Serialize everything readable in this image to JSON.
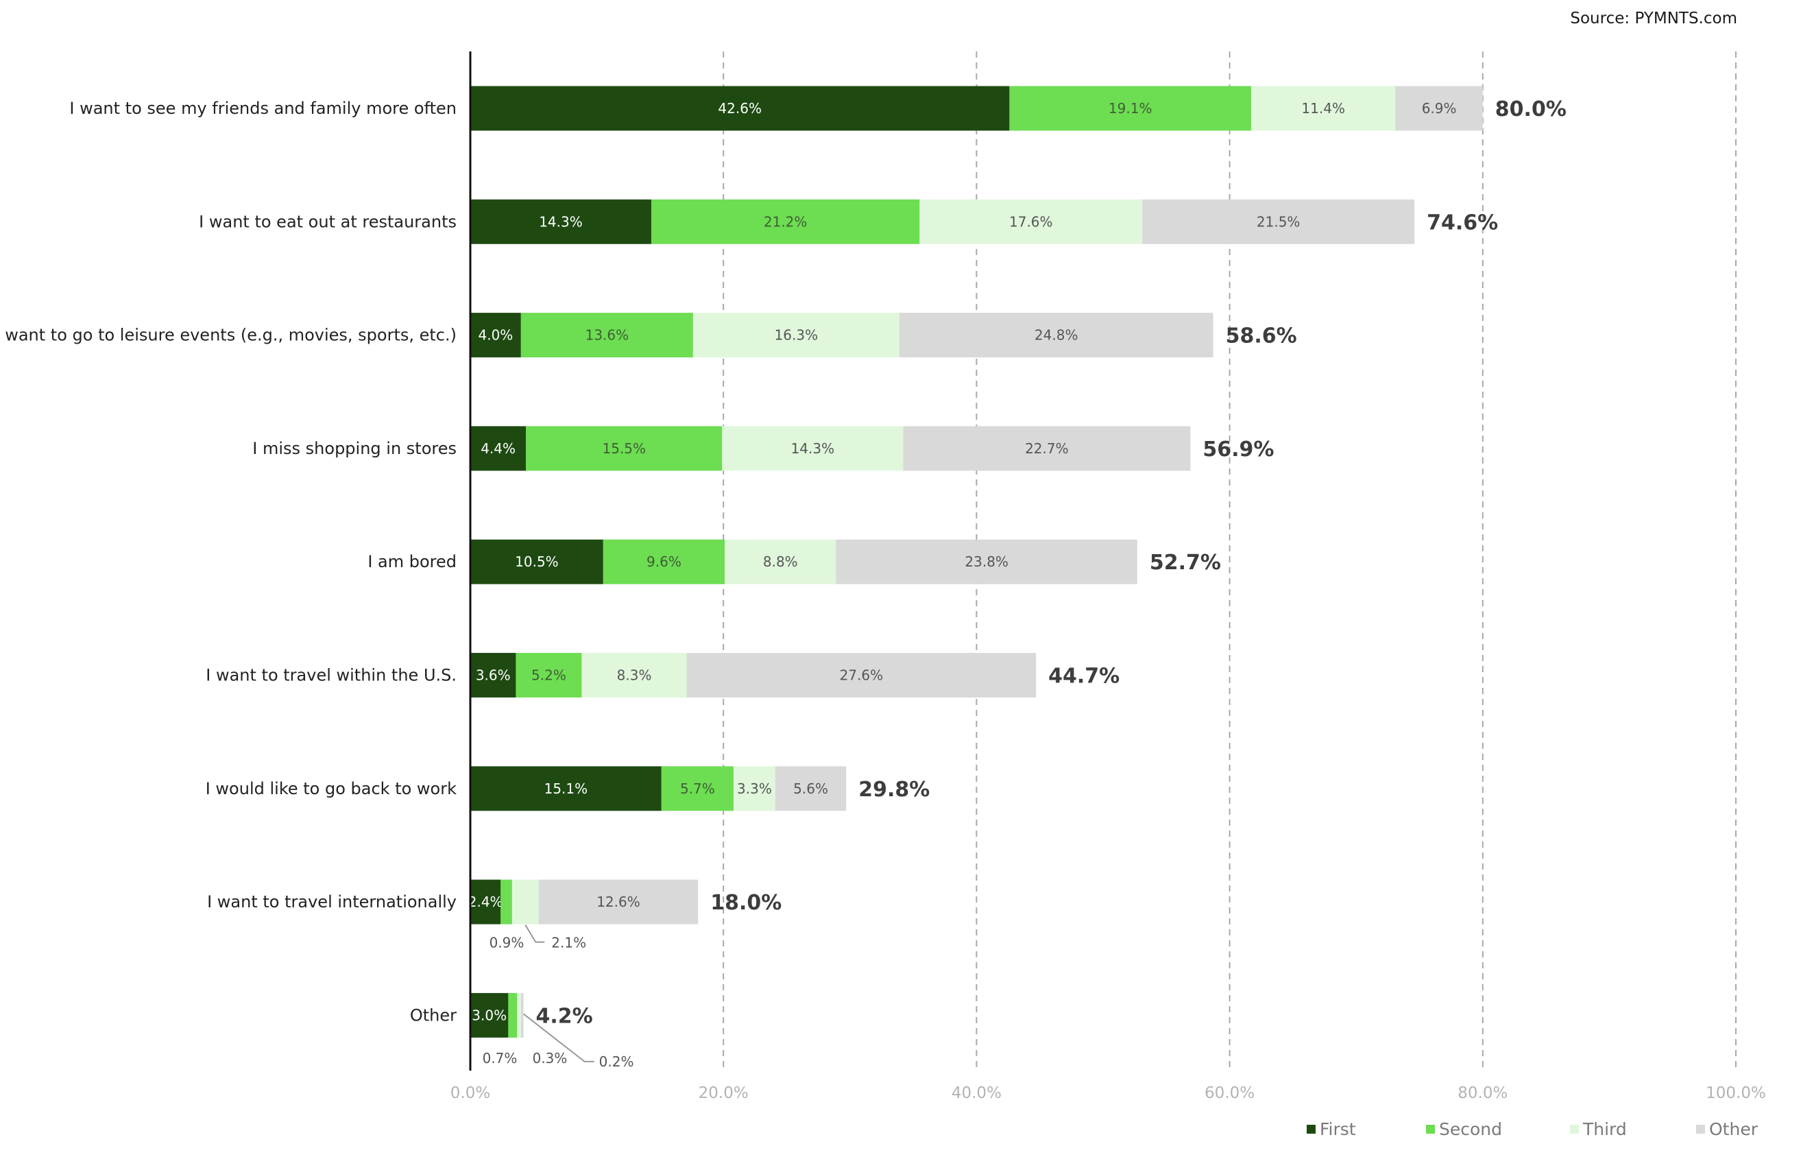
{
  "source": "Source: PYMNTS.com",
  "colors": {
    "First": "#1e4a12",
    "Second": "#6ddd52",
    "Third": "#e0f7dc",
    "Other": "#d9d9d9",
    "label_on_first": "#ffffff",
    "label_on_second": "#3f5e35",
    "label_on_third": "#555555",
    "label_on_other": "#555555",
    "axis": "#111111",
    "grid": "#a8a8a8"
  },
  "chart_data": {
    "type": "bar",
    "orientation": "horizontal",
    "stacked": true,
    "title": "",
    "xlabel": "",
    "ylabel": "",
    "xlim": [
      0,
      100
    ],
    "x_ticks": [
      "0.0%",
      "20.0%",
      "40.0%",
      "60.0%",
      "80.0%",
      "100.0%"
    ],
    "x_tick_values": [
      0,
      20,
      40,
      60,
      80,
      100
    ],
    "grid": true,
    "legend_position": "bottom-right",
    "categories": [
      "I want to see my friends and family more often",
      "I want to eat out at restaurants",
      "I want to go to leisure events (e.g., movies, sports, etc.)",
      "I miss shopping in stores",
      "I am bored",
      "I want to travel within the U.S.",
      "I would like to go back to work",
      "I want to travel internationally",
      "Other"
    ],
    "series": [
      {
        "name": "First",
        "values": [
          42.6,
          14.3,
          4.0,
          4.4,
          10.5,
          3.6,
          15.1,
          2.4,
          3.0
        ],
        "labels": [
          "42.6%",
          "14.3%",
          "4.0%",
          "4.4%",
          "10.5%",
          "3.6%",
          "15.1%",
          "2.4%",
          "3.0%"
        ]
      },
      {
        "name": "Second",
        "values": [
          19.1,
          21.2,
          13.6,
          15.5,
          9.6,
          5.2,
          5.7,
          0.9,
          0.7
        ],
        "labels": [
          "19.1%",
          "21.2%",
          "13.6%",
          "15.5%",
          "9.6%",
          "5.2%",
          "5.7%",
          "0.9%",
          "0.7%"
        ]
      },
      {
        "name": "Third",
        "values": [
          11.4,
          17.6,
          16.3,
          14.3,
          8.8,
          8.3,
          3.3,
          2.1,
          0.3
        ],
        "labels": [
          "11.4%",
          "17.6%",
          "16.3%",
          "14.3%",
          "8.8%",
          "8.3%",
          "3.3%",
          "2.1%",
          "0.3%"
        ]
      },
      {
        "name": "Other",
        "values": [
          6.9,
          21.5,
          24.8,
          22.7,
          23.8,
          27.6,
          5.6,
          12.6,
          0.2
        ],
        "labels": [
          "6.9%",
          "21.5%",
          "24.8%",
          "22.7%",
          "23.8%",
          "27.6%",
          "5.6%",
          "12.6%",
          "0.2%"
        ]
      }
    ],
    "totals": [
      "80.0%",
      "74.6%",
      "58.6%",
      "56.9%",
      "52.7%",
      "44.7%",
      "29.8%",
      "18.0%",
      "4.2%"
    ],
    "outside_labels": [
      {
        "row": 7,
        "series": "Second"
      },
      {
        "row": 7,
        "series": "Third",
        "leader": true
      },
      {
        "row": 8,
        "series": "Second"
      },
      {
        "row": 8,
        "series": "Third"
      },
      {
        "row": 8,
        "series": "Other",
        "leader": true
      }
    ],
    "legend": [
      "First",
      "Second",
      "Third",
      "Other"
    ]
  }
}
